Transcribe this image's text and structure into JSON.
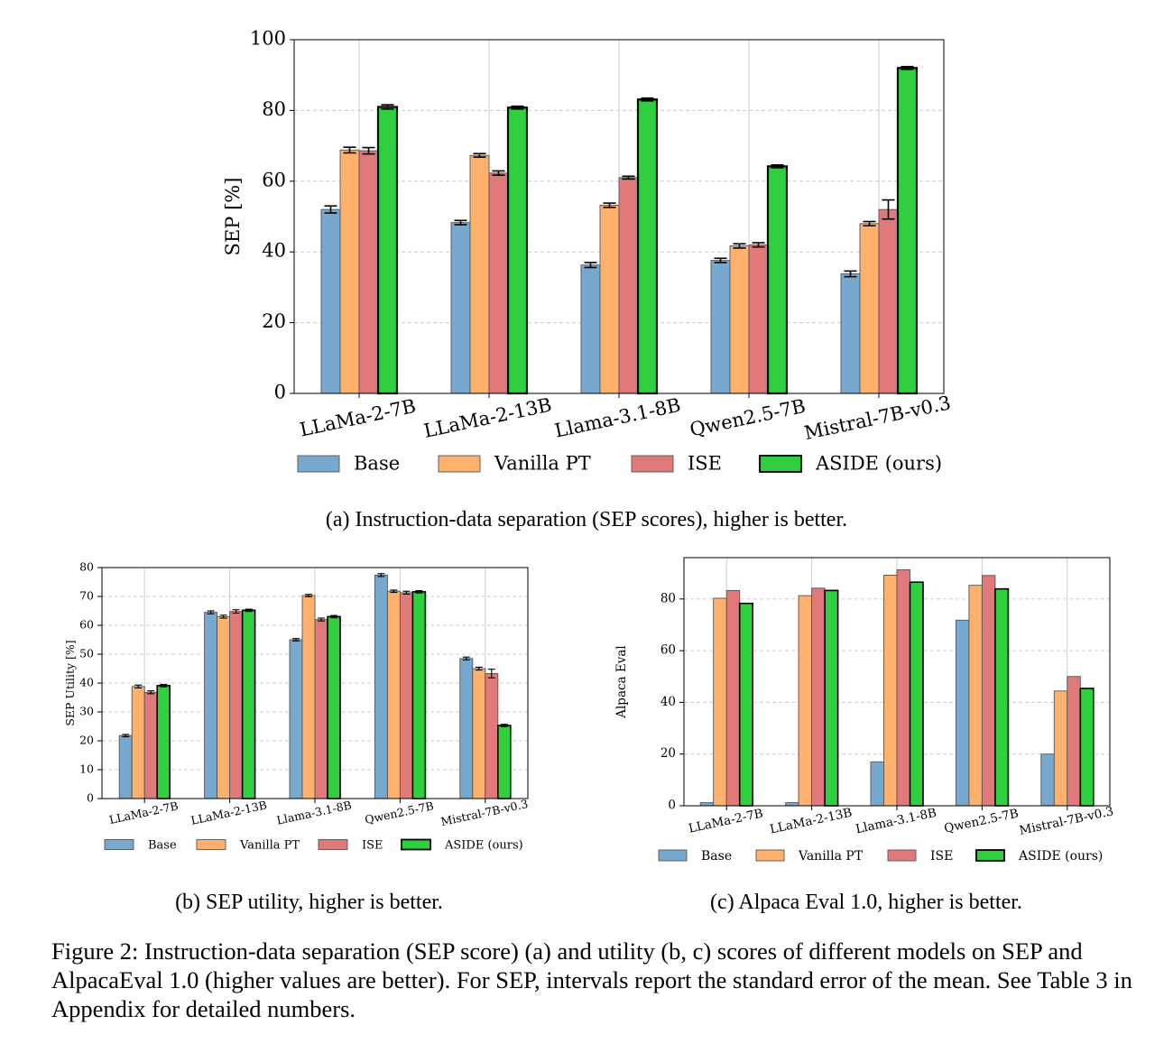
{
  "series_colors": {
    "Base": "#77a9cf",
    "Vanilla PT": "#fdb16d",
    "ISE": "#e07a7a",
    "ASIDE (ours)": "#2fcf3f"
  },
  "captions": {
    "a": "(a) Instruction-data separation (SEP scores), higher is better.",
    "b": "(b) SEP utility, higher is better.",
    "c": "(c) Alpaca Eval 1.0, higher is better."
  },
  "figure_caption": "Figure 2: Instruction-data separation (SEP score) (a) and utility (b, c) scores of different models on SEP and AlpacaEval 1.0 (higher values are better). For SEP, intervals report the standard error of the mean. See Table 3 in Appendix for detailed numbers.",
  "chart_data": [
    {
      "id": "a",
      "type": "bar",
      "xlabel": "",
      "ylabel": "SEP [%]",
      "ylim": [
        0,
        100
      ],
      "yticks": [
        0,
        20,
        40,
        60,
        80,
        100
      ],
      "grid": true,
      "legend": "bottom",
      "categories": [
        "LLaMa-2-7B",
        "LLaMa-2-13B",
        "Llama-3.1-8B",
        "Qwen2.5-7B",
        "Mistral-7B-v0.3"
      ],
      "series": [
        {
          "name": "Base",
          "values": [
            52.0,
            48.3,
            36.3,
            37.6,
            33.8
          ],
          "errors": [
            1.0,
            0.6,
            0.7,
            0.6,
            0.8
          ]
        },
        {
          "name": "Vanilla PT",
          "values": [
            68.8,
            67.3,
            53.2,
            41.7,
            48.0
          ],
          "errors": [
            0.8,
            0.5,
            0.6,
            0.6,
            0.6
          ]
        },
        {
          "name": "ISE",
          "values": [
            68.6,
            62.3,
            61.0,
            42.0,
            52.0
          ],
          "errors": [
            0.9,
            0.6,
            0.4,
            0.6,
            2.7
          ]
        },
        {
          "name": "ASIDE (ours)",
          "values": [
            81.0,
            80.8,
            83.1,
            64.2,
            92.0
          ],
          "errors": [
            0.6,
            0.4,
            0.4,
            0.4,
            0.4
          ]
        }
      ]
    },
    {
      "id": "b",
      "type": "bar",
      "xlabel": "",
      "ylabel": "SEP Utility [%]",
      "ylim": [
        0,
        80
      ],
      "yticks": [
        0,
        10,
        20,
        30,
        40,
        50,
        60,
        70,
        80
      ],
      "grid": true,
      "legend": "bottom",
      "categories": [
        "LLaMa-2-7B",
        "LLaMa-2-13B",
        "Llama-3.1-8B",
        "Qwen2.5-7B",
        "Mistral-7B-v0.3"
      ],
      "series": [
        {
          "name": "Base",
          "values": [
            21.8,
            64.5,
            55.0,
            77.4,
            48.5
          ],
          "errors": [
            0.4,
            0.5,
            0.4,
            0.5,
            0.5
          ]
        },
        {
          "name": "Vanilla PT",
          "values": [
            38.8,
            63.0,
            70.3,
            71.8,
            45.0
          ],
          "errors": [
            0.5,
            0.5,
            0.4,
            0.4,
            0.5
          ]
        },
        {
          "name": "ISE",
          "values": [
            36.8,
            64.8,
            62.0,
            71.3,
            43.3
          ],
          "errors": [
            0.5,
            0.6,
            0.5,
            0.5,
            1.5
          ]
        },
        {
          "name": "ASIDE (ours)",
          "values": [
            39.1,
            65.2,
            63.0,
            71.6,
            25.3
          ],
          "errors": [
            0.4,
            0.4,
            0.4,
            0.4,
            0.4
          ]
        }
      ]
    },
    {
      "id": "c",
      "type": "bar",
      "xlabel": "",
      "ylabel": "Alpaca Eval",
      "ylim": [
        0,
        96
      ],
      "yticks": [
        0,
        20,
        40,
        60,
        80
      ],
      "grid": true,
      "legend": "bottom",
      "categories": [
        "LLaMa-2-7B",
        "LLaMa-2-13B",
        "Llama-3.1-8B",
        "Qwen2.5-7B",
        "Mistral-7B-v0.3"
      ],
      "series": [
        {
          "name": "Base",
          "values": [
            1.2,
            1.2,
            17.0,
            71.8,
            20.0
          ]
        },
        {
          "name": "Vanilla PT",
          "values": [
            80.3,
            81.3,
            89.2,
            85.3,
            44.4
          ]
        },
        {
          "name": "ISE",
          "values": [
            83.3,
            84.2,
            91.3,
            89.1,
            50.0
          ]
        },
        {
          "name": "ASIDE (ours)",
          "values": [
            78.3,
            83.3,
            86.5,
            83.9,
            45.4
          ]
        }
      ]
    }
  ]
}
